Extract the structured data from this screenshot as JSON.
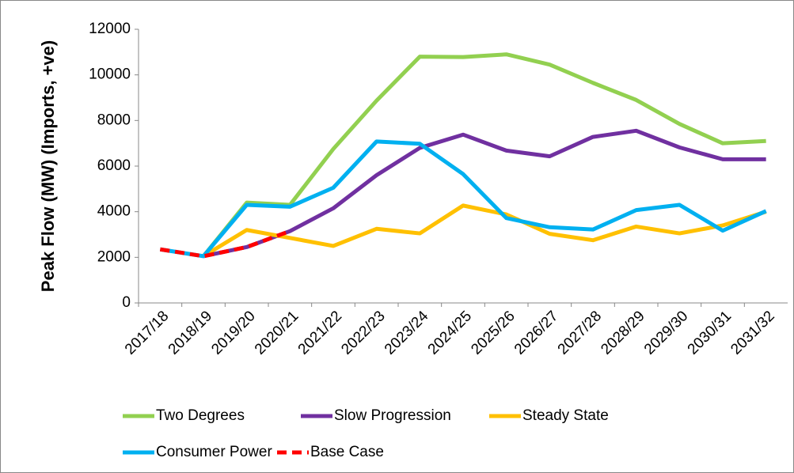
{
  "chart_data": {
    "type": "line",
    "ylabel": "Peak Flow (MW)  (Imports, +ve)",
    "categories": [
      "2017/18",
      "2018/19",
      "2019/20",
      "2020/21",
      "2021/22",
      "2022/23",
      "2023/24",
      "2024/25",
      "2025/26",
      "2026/27",
      "2027/28",
      "2028/29",
      "2029/30",
      "2030/31",
      "2031/32"
    ],
    "ylim": [
      0,
      12000
    ],
    "yticks": [
      0,
      2000,
      4000,
      6000,
      8000,
      10000,
      12000
    ],
    "legend": "bottom",
    "series": [
      {
        "name": "Two Degrees",
        "color": "#92d050",
        "values": [
          null,
          2050,
          4400,
          4300,
          6750,
          8870,
          10800,
          10780,
          10900,
          10450,
          9650,
          8900,
          7850,
          7000,
          7100
        ]
      },
      {
        "name": "Slow Progression",
        "color": "#7030a0",
        "values": [
          null,
          2050,
          2450,
          3150,
          4150,
          5600,
          6800,
          7380,
          6680,
          6430,
          7280,
          7550,
          6820,
          6300,
          6300
        ]
      },
      {
        "name": "Steady State",
        "color": "#ffc000",
        "values": [
          null,
          2050,
          3200,
          2850,
          2500,
          3250,
          3050,
          4270,
          3880,
          3030,
          2750,
          3350,
          3050,
          3400,
          4000
        ]
      },
      {
        "name": "Consumer Power",
        "color": "#00b0f0",
        "values": [
          2350,
          2050,
          4300,
          4220,
          5050,
          7080,
          6980,
          5650,
          3720,
          3320,
          3220,
          4070,
          4300,
          3170,
          4030
        ]
      },
      {
        "name": "Base Case",
        "color": "#ff0000",
        "dashed": true,
        "values": [
          2350,
          2050,
          2450,
          3150,
          null,
          null,
          null,
          null,
          null,
          null,
          null,
          null,
          null,
          null,
          null
        ]
      }
    ]
  }
}
